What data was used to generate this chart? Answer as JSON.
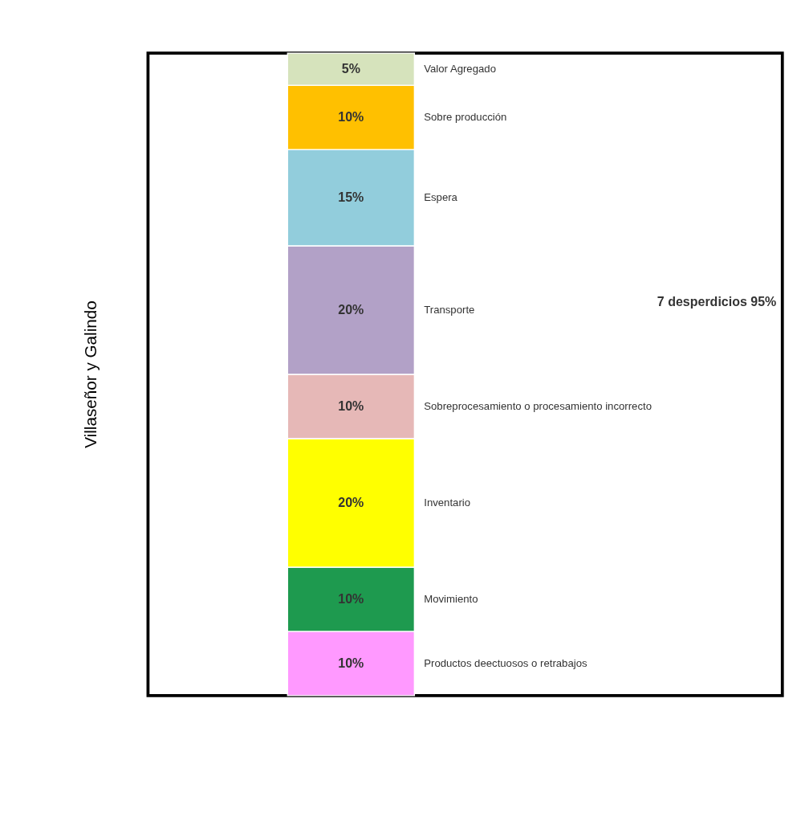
{
  "chart_data": {
    "type": "bar",
    "stacked": true,
    "categories": [
      null
    ],
    "ylim": [
      0,
      100
    ],
    "tick_labels": false,
    "legend": false,
    "series": [
      {
        "name": "Productos deectuosos o retrabajos",
        "color": "#ff99ff",
        "values": [
          10
        ],
        "value_labels": [
          "10%"
        ]
      },
      {
        "name": "Movimiento",
        "color": "#1e9a4f",
        "values": [
          10
        ],
        "value_labels": [
          "10%"
        ]
      },
      {
        "name": "Inventario",
        "color": "#ffff00",
        "values": [
          20
        ],
        "value_labels": [
          "20%"
        ]
      },
      {
        "name": "Sobreprocesamiento o procesamiento incorrecto",
        "color": "#e6b8b7",
        "values": [
          10
        ],
        "value_labels": [
          "10%"
        ]
      },
      {
        "name": "Transporte",
        "color": "#b2a1c7",
        "values": [
          20
        ],
        "value_labels": [
          "20%"
        ]
      },
      {
        "name": "Espera",
        "color": "#92cddc",
        "values": [
          15
        ],
        "value_labels": [
          "15%"
        ]
      },
      {
        "name": "Sobre producción",
        "color": "#ffc000",
        "values": [
          10
        ],
        "value_labels": [
          "10%"
        ]
      },
      {
        "name": "Valor Agregado",
        "color": "#d6e3bc",
        "values": [
          5
        ],
        "value_labels": [
          "5%"
        ]
      }
    ],
    "annotations": [
      "7 desperdicios 95%",
      "Villaseñor y Galindo"
    ]
  }
}
